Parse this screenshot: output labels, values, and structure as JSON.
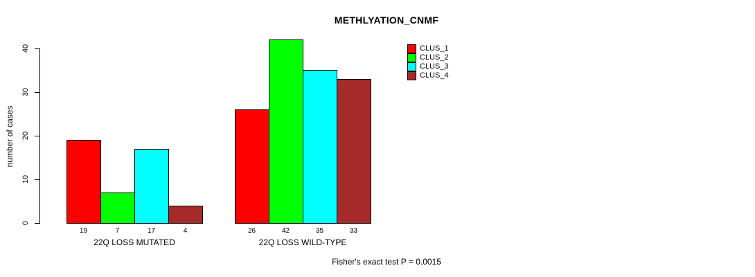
{
  "figure": {
    "title": "METHLYATION_CNMF",
    "footer": "Fisher's exact test P = 0.0015"
  },
  "chart_data": {
    "type": "bar",
    "title": "METHLYATION_CNMF",
    "xlabel": "",
    "ylabel": "number of cases",
    "ylim": [
      0,
      40
    ],
    "yticks": [
      "0",
      "10",
      "20",
      "30",
      "40"
    ],
    "grid": false,
    "legend_position": "top-right",
    "bar_border_color": "#000000",
    "categories": [
      "22Q LOSS MUTATED",
      "22Q LOSS WILD-TYPE"
    ],
    "series": [
      {
        "name": "CLUS_1",
        "color": "#ff0000",
        "values": [
          19,
          26
        ]
      },
      {
        "name": "CLUS_2",
        "color": "#00ff00",
        "values": [
          7,
          42
        ]
      },
      {
        "name": "CLUS_3",
        "color": "#00ffff",
        "values": [
          17,
          35
        ]
      },
      {
        "name": "CLUS_4",
        "color": "#a52a2a",
        "values": [
          4,
          33
        ]
      }
    ],
    "bar_value_labels": [
      [
        "19",
        "7",
        "17",
        "4"
      ],
      [
        "26",
        "42",
        "35",
        "33"
      ]
    ],
    "annotation": "Fisher's exact test P = 0.0015"
  }
}
